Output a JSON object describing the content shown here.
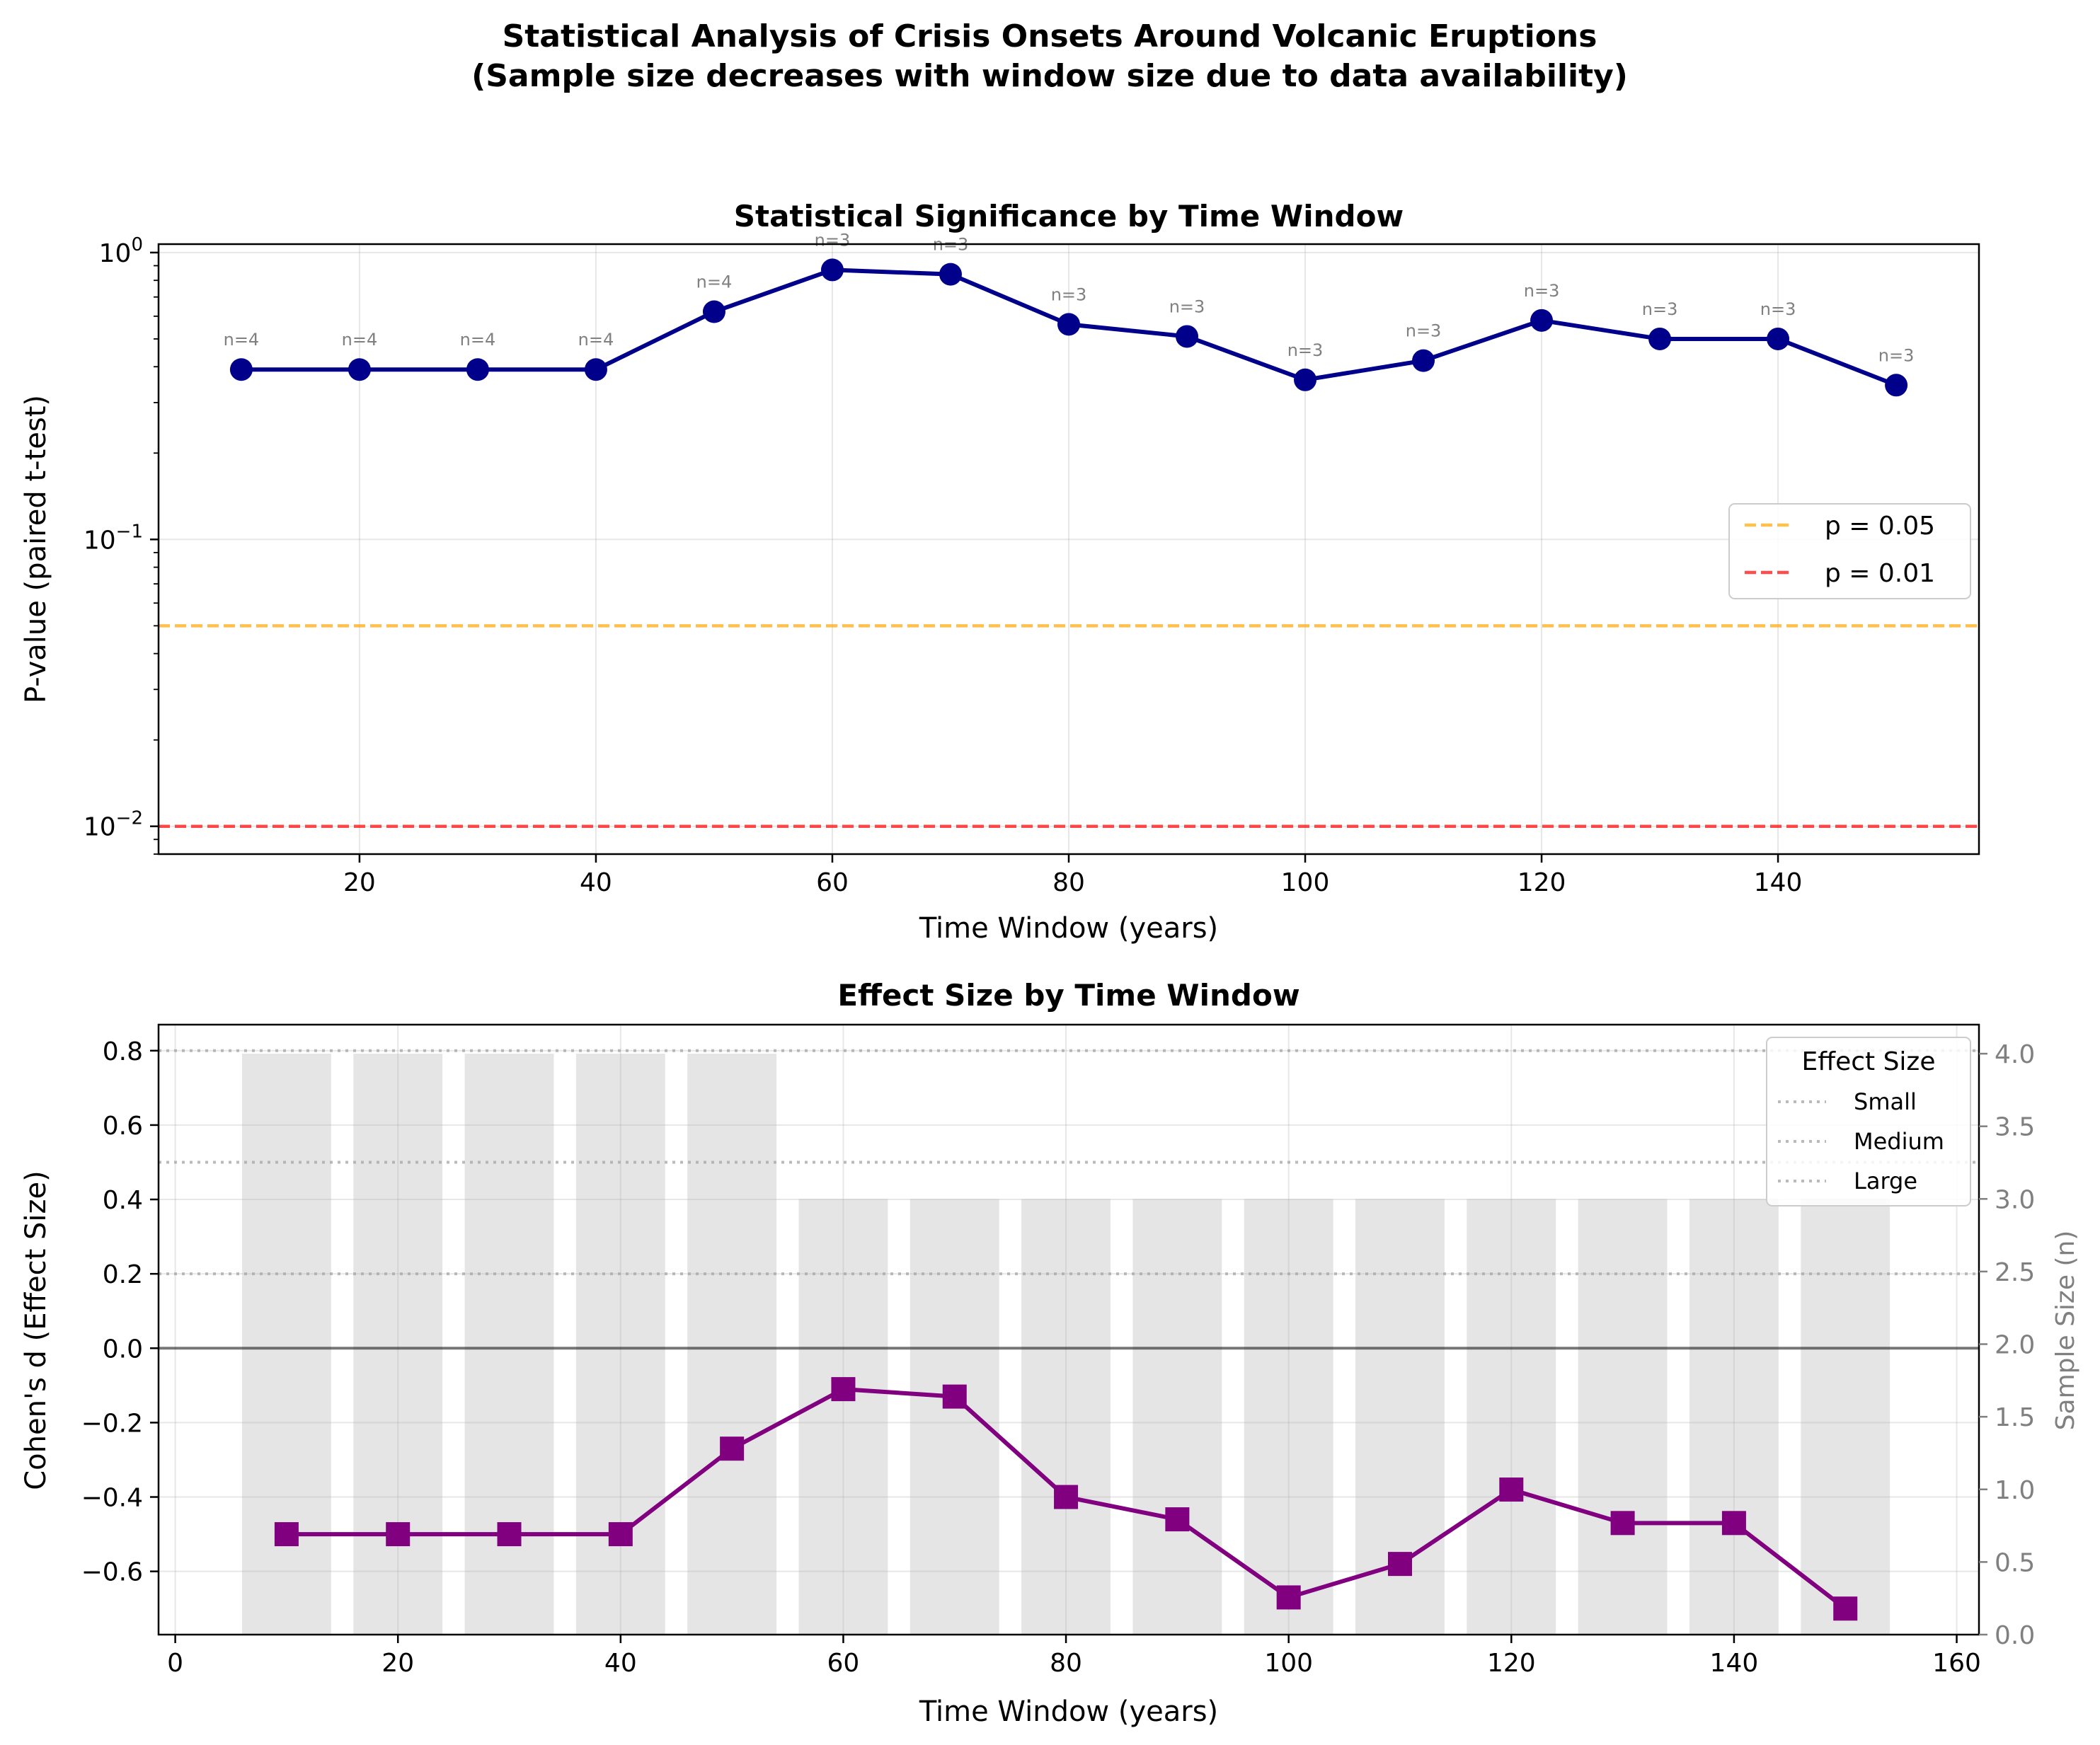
{
  "suptitle": {
    "line1": "Statistical Analysis of Crisis Onsets Around Volcanic Eruptions",
    "line2": "(Sample size decreases with window size due to data availability)"
  },
  "chart_data": [
    {
      "type": "line",
      "title": "Statistical Significance by Time Window",
      "xlabel": "Time Window (years)",
      "ylabel": "P-value (paired t-test)",
      "yscale": "log",
      "ylim": [
        0.008,
        1.07
      ],
      "xlim": [
        3,
        157
      ],
      "xticks": [
        20,
        40,
        60,
        80,
        100,
        120,
        140
      ],
      "yticks": [
        {
          "value": 0.01,
          "base": "10",
          "exp": "−2"
        },
        {
          "value": 0.1,
          "base": "10",
          "exp": "−1"
        },
        {
          "value": 1,
          "base": "10",
          "exp": "0"
        }
      ],
      "grid": true,
      "x": [
        10,
        20,
        30,
        40,
        50,
        60,
        70,
        80,
        90,
        100,
        110,
        120,
        130,
        140,
        150
      ],
      "series": [
        {
          "values": [
            0.391,
            0.391,
            0.391,
            0.391,
            0.622,
            0.87,
            0.84,
            0.562,
            0.51,
            0.36,
            0.42,
            0.58,
            0.5,
            0.5,
            0.345
          ],
          "color": "#00008b",
          "marker": "circle"
        }
      ],
      "annotations": [
        "n=4",
        "n=4",
        "n=4",
        "n=4",
        "n=4",
        "n=3",
        "n=3",
        "n=3",
        "n=3",
        "n=3",
        "n=3",
        "n=3",
        "n=3",
        "n=3",
        "n=3"
      ],
      "reference_lines": [
        {
          "label": "p = 0.05",
          "value": 0.05,
          "color": "#ffa500"
        },
        {
          "label": "p = 0.01",
          "value": 0.01,
          "color": "#ff0000"
        }
      ],
      "legend_position": "center-right"
    },
    {
      "type": "line",
      "title": "Effect Size by Time Window",
      "xlabel": "Time Window (years)",
      "ylabel": "Cohen's d (Effect Size)",
      "ylabel_right": "Sample Size (n)",
      "xlim": [
        -1.5,
        162
      ],
      "ylim": [
        -0.77,
        0.87
      ],
      "ylim_right": [
        0,
        4.2
      ],
      "xticks": [
        0,
        20,
        40,
        60,
        80,
        100,
        120,
        140,
        160
      ],
      "yticks": [
        "−0.6",
        "−0.4",
        "−0.2",
        "0.0",
        "0.2",
        "0.4",
        "0.6",
        "0.8"
      ],
      "ytick_values": [
        -0.6,
        -0.4,
        -0.2,
        0.0,
        0.2,
        0.4,
        0.6,
        0.8
      ],
      "yticks_right": [
        "0.0",
        "0.5",
        "1.0",
        "1.5",
        "2.0",
        "2.5",
        "3.0",
        "3.5",
        "4.0"
      ],
      "ytick_right_values": [
        0,
        0.5,
        1.0,
        1.5,
        2.0,
        2.5,
        3.0,
        3.5,
        4.0
      ],
      "grid": true,
      "x": [
        10,
        20,
        30,
        40,
        50,
        60,
        70,
        80,
        90,
        100,
        110,
        120,
        130,
        140,
        150
      ],
      "series": [
        {
          "values": [
            -0.5,
            -0.5,
            -0.5,
            -0.5,
            -0.27,
            -0.11,
            -0.13,
            -0.4,
            -0.46,
            -0.67,
            -0.58,
            -0.38,
            -0.47,
            -0.47,
            -0.7
          ],
          "color": "#800080",
          "marker": "square"
        }
      ],
      "sample_size_bars": {
        "values": [
          4,
          4,
          4,
          4,
          4,
          3,
          3,
          3,
          3,
          3,
          3,
          3,
          3,
          3,
          3
        ],
        "width": 8,
        "color": "#d3d3d3"
      },
      "reference_lines": [
        {
          "label": "Small",
          "value": 0.2,
          "color": "#a9a9a9"
        },
        {
          "label": "Medium",
          "value": 0.5,
          "color": "#a9a9a9"
        },
        {
          "label": "Large",
          "value": 0.8,
          "color": "#a9a9a9"
        }
      ],
      "legend_title": "Effect Size",
      "legend_position": "top-right"
    }
  ]
}
